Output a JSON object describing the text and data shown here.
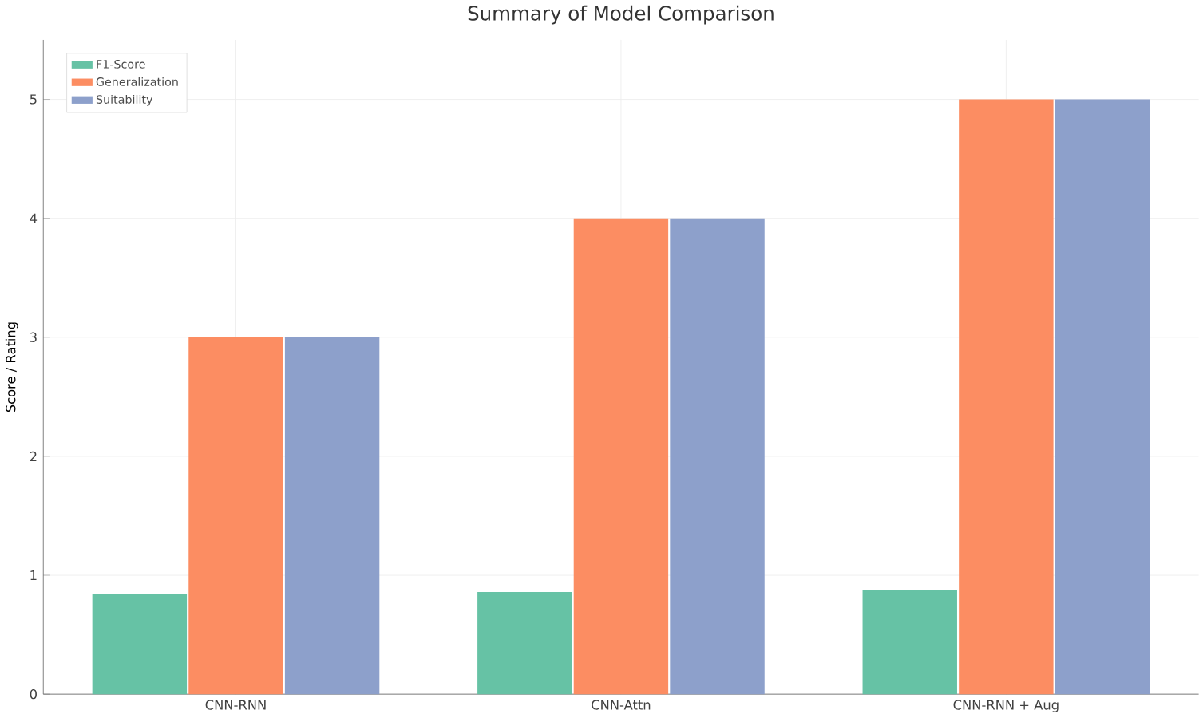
{
  "chart_data": {
    "type": "bar",
    "title": "Summary of Model Comparison",
    "ylabel": "Score / Rating",
    "categories": [
      "CNN-RNN",
      "CNN-Attn",
      "CNN-RNN + Aug"
    ],
    "series": [
      {
        "name": "F1-Score",
        "color": "#66c2a5",
        "values": [
          0.84,
          0.86,
          0.88
        ]
      },
      {
        "name": "Generalization",
        "color": "#fc8d62",
        "values": [
          3,
          4,
          5
        ]
      },
      {
        "name": "Suitability",
        "color": "#8da0cb",
        "values": [
          3,
          4,
          5
        ]
      }
    ],
    "ylim": [
      0,
      5.5
    ],
    "yticks": [
      0,
      1,
      2,
      3,
      4,
      5
    ],
    "grid": true,
    "legend": "top left"
  }
}
